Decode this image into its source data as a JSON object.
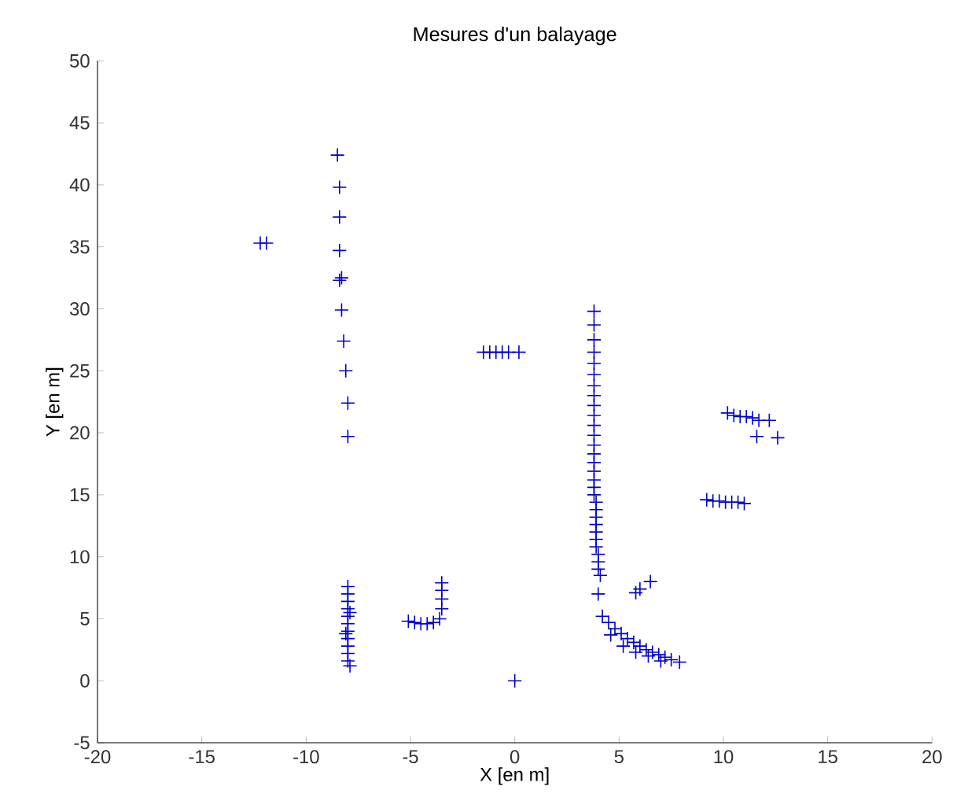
{
  "chart_data": {
    "type": "scatter",
    "title": "Mesures d'un balayage",
    "xlabel": "X [en m]",
    "ylabel": "Y [en m]",
    "xlim": [
      -20,
      20
    ],
    "ylim": [
      -5,
      50
    ],
    "xticks": [
      -20,
      -15,
      -10,
      -5,
      0,
      5,
      10,
      15,
      20
    ],
    "yticks": [
      -5,
      0,
      5,
      10,
      15,
      20,
      25,
      30,
      35,
      40,
      45,
      50
    ],
    "marker": "cross",
    "grid": false,
    "series": [
      {
        "color": "#0000c8",
        "x": [
          -12.2,
          -11.9,
          -8.5,
          -8.4,
          -8.4,
          -8.4,
          -8.3,
          -8.4,
          -8.3,
          -8.2,
          -8.1,
          -8.0,
          -8.0,
          -8.0,
          -8.0,
          -8.0,
          -8.0,
          -8.0,
          -8.0,
          -8.0,
          -8.0,
          -8.0,
          -8.0,
          -8.0,
          -7.9,
          -8.1,
          -7.9,
          -5.1,
          -4.8,
          -4.5,
          -4.2,
          -3.9,
          -3.6,
          -3.5,
          -3.5,
          -3.5,
          -3.5,
          -1.5,
          -1.2,
          -0.9,
          -0.6,
          -0.3,
          0.2,
          0.0,
          3.8,
          3.8,
          3.8,
          3.8,
          3.8,
          3.8,
          3.8,
          3.8,
          3.8,
          3.8,
          3.8,
          3.8,
          3.8,
          3.8,
          3.8,
          3.8,
          3.8,
          3.8,
          3.8,
          3.9,
          3.9,
          3.9,
          3.9,
          3.9,
          3.9,
          3.9,
          4.0,
          4.0,
          4.0,
          4.1,
          4.0,
          4.2,
          4.5,
          4.8,
          5.1,
          5.4,
          5.7,
          6.0,
          6.3,
          6.6,
          6.9,
          7.2,
          7.5,
          7.9,
          4.6,
          5.2,
          5.8,
          6.4,
          7.0,
          5.8,
          6.0,
          6.5,
          10.2,
          10.5,
          10.8,
          11.1,
          11.4,
          11.7,
          12.2,
          11.6,
          12.6,
          9.2,
          9.5,
          9.8,
          10.1,
          10.4,
          10.7,
          11.0
        ],
        "values": [
          35.3,
          35.3,
          42.4,
          39.8,
          37.4,
          34.7,
          32.5,
          32.3,
          29.9,
          27.4,
          25.0,
          22.4,
          19.7,
          7.6,
          7.0,
          6.4,
          5.8,
          5.2,
          4.6,
          4.0,
          3.4,
          2.8,
          2.2,
          1.6,
          1.2,
          3.8,
          5.5,
          4.8,
          4.7,
          4.6,
          4.6,
          4.7,
          5.0,
          5.8,
          6.6,
          7.3,
          7.9,
          26.5,
          26.5,
          26.5,
          26.5,
          26.5,
          26.5,
          0.0,
          29.8,
          28.7,
          27.5,
          26.5,
          25.6,
          24.7,
          23.8,
          23.0,
          22.2,
          21.4,
          20.6,
          19.8,
          19.0,
          18.3,
          17.6,
          16.9,
          16.2,
          15.6,
          15.0,
          14.4,
          13.8,
          13.2,
          12.6,
          12.0,
          11.4,
          10.8,
          10.2,
          9.6,
          9.0,
          8.5,
          7.0,
          5.2,
          4.7,
          4.2,
          3.8,
          3.4,
          3.1,
          2.8,
          2.5,
          2.3,
          2.1,
          1.9,
          1.7,
          1.5,
          3.7,
          2.8,
          2.3,
          2.0,
          1.6,
          7.1,
          7.4,
          8.0,
          21.6,
          21.4,
          21.3,
          21.3,
          21.2,
          21.0,
          21.0,
          19.7,
          19.6,
          14.6,
          14.5,
          14.5,
          14.4,
          14.4,
          14.4,
          14.3
        ]
      }
    ]
  }
}
